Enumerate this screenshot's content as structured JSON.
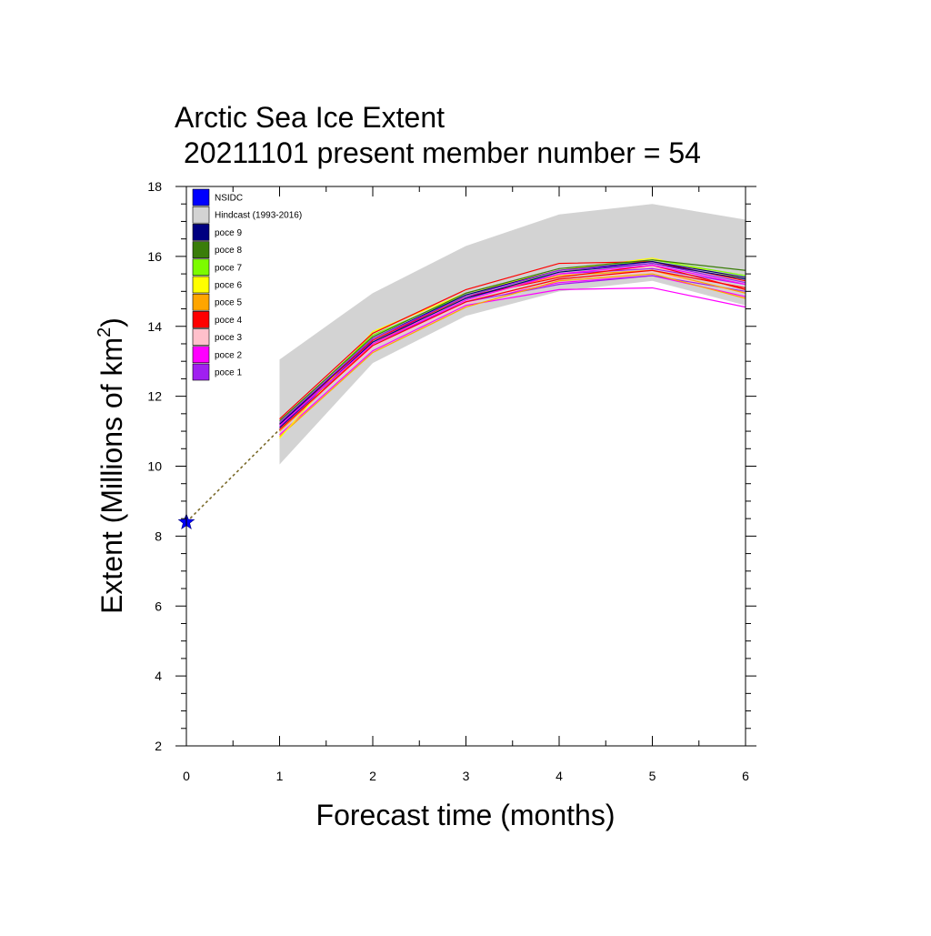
{
  "chart_data": {
    "type": "line",
    "title": "Arctic Sea Ice Extent",
    "subtitle": "20211101 present member number = 54",
    "xlabel": "Forecast time (months)",
    "ylabel": "Extent (Millions of km",
    "ylabel_superscript": "2",
    "ylabel_close": ")",
    "xlim": [
      0,
      6
    ],
    "ylim": [
      2,
      18
    ],
    "x_ticks": [
      "0",
      "1",
      "2",
      "3",
      "4",
      "5",
      "6"
    ],
    "y_ticks": [
      "2",
      "4",
      "6",
      "8",
      "10",
      "12",
      "14",
      "16",
      "18"
    ],
    "grid": false,
    "legend_position": "top-left",
    "legend": [
      {
        "label": "NSIDC",
        "color": "#0000ff"
      },
      {
        "label": "Hindcast (1993-2016)",
        "color": "#d3d3d3"
      },
      {
        "label": "poce 9",
        "color": "#000080"
      },
      {
        "label": "poce 8",
        "color": "#3a7d0a"
      },
      {
        "label": "poce 7",
        "color": "#7cfc00"
      },
      {
        "label": "poce 6",
        "color": "#ffff00"
      },
      {
        "label": "poce 5",
        "color": "#ffa500"
      },
      {
        "label": "poce 4",
        "color": "#ff0000"
      },
      {
        "label": "poce 3",
        "color": "#ffc0cb"
      },
      {
        "label": "poce 2",
        "color": "#ff00ff"
      },
      {
        "label": "poce 1",
        "color": "#a020f0"
      }
    ],
    "observation": {
      "name": "NSIDC",
      "x": 0,
      "y": 8.4,
      "color": "#0000ff"
    },
    "observation_link": {
      "from": [
        0,
        8.4
      ],
      "to": [
        1,
        11.05
      ],
      "color": "#7a6a2a"
    },
    "hindcast_band": {
      "name": "Hindcast (1993-2016)",
      "color": "#d3d3d3",
      "x": [
        1,
        2,
        3,
        4,
        5,
        6
      ],
      "upper": [
        13.05,
        14.95,
        16.3,
        17.2,
        17.5,
        17.05
      ],
      "lower": [
        10.05,
        12.95,
        14.3,
        15.0,
        15.3,
        14.6
      ]
    },
    "x": [
      1,
      2,
      3,
      4,
      5,
      6
    ],
    "series": [
      {
        "color": "#ff00ff",
        "values": [
          10.9,
          13.3,
          14.6,
          15.05,
          15.1,
          14.55
        ]
      },
      {
        "color": "#ff00ff",
        "values": [
          11.0,
          13.45,
          14.7,
          15.25,
          15.45,
          14.85
        ]
      },
      {
        "color": "#ffc0cb",
        "values": [
          11.05,
          13.4,
          14.65,
          15.35,
          15.55,
          14.95
        ]
      },
      {
        "color": "#ffc0cb",
        "values": [
          11.1,
          13.55,
          14.75,
          15.45,
          15.7,
          15.1
        ]
      },
      {
        "color": "#a020f0",
        "values": [
          11.05,
          13.5,
          14.7,
          15.2,
          15.45,
          15.0
        ]
      },
      {
        "color": "#a020f0",
        "values": [
          11.15,
          13.6,
          14.8,
          15.5,
          15.65,
          15.2
        ]
      },
      {
        "color": "#ffa500",
        "values": [
          10.85,
          13.25,
          14.55,
          15.3,
          15.5,
          14.8
        ]
      },
      {
        "color": "#ffa500",
        "values": [
          11.0,
          13.5,
          14.85,
          15.45,
          15.6,
          14.95
        ]
      },
      {
        "color": "#ffff00",
        "values": [
          10.8,
          13.85,
          14.95,
          15.6,
          15.95,
          15.35
        ]
      },
      {
        "color": "#7cfc00",
        "values": [
          11.25,
          13.75,
          14.9,
          15.55,
          15.9,
          15.45
        ]
      },
      {
        "color": "#ff0000",
        "values": [
          11.35,
          13.8,
          15.05,
          15.8,
          15.85,
          15.3
        ]
      },
      {
        "color": "#ff0000",
        "values": [
          11.2,
          13.6,
          14.85,
          15.4,
          15.75,
          15.05
        ]
      },
      {
        "color": "#3a7d0a",
        "values": [
          11.3,
          13.7,
          14.95,
          15.65,
          15.9,
          15.6
        ]
      },
      {
        "color": "#000080",
        "values": [
          11.2,
          13.65,
          14.9,
          15.6,
          15.85,
          15.4
        ]
      },
      {
        "color": "#000080",
        "values": [
          11.1,
          13.55,
          14.8,
          15.55,
          15.8,
          15.35
        ]
      },
      {
        "color": "#ff00ff",
        "values": [
          11.15,
          13.5,
          14.75,
          15.5,
          15.75,
          15.2
        ]
      },
      {
        "color": "#a020f0",
        "values": [
          11.25,
          13.65,
          14.85,
          15.6,
          15.8,
          15.25
        ]
      },
      {
        "color": "#ff0000",
        "values": [
          11.05,
          13.45,
          14.7,
          15.35,
          15.6,
          15.1
        ]
      }
    ]
  }
}
